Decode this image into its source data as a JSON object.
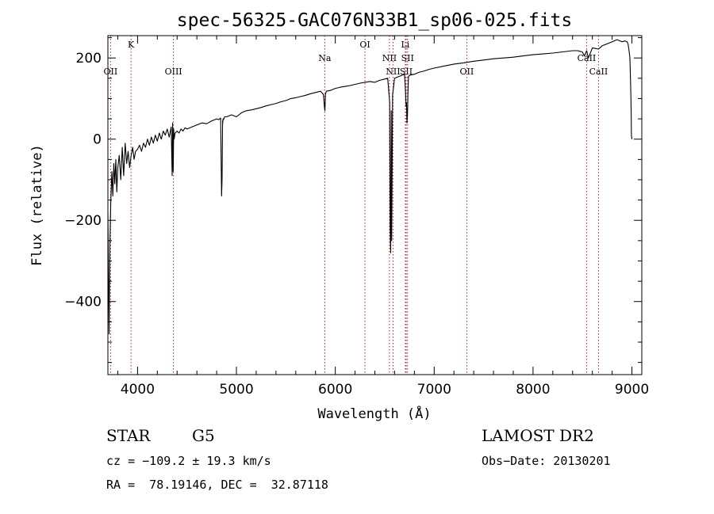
{
  "chart_data": {
    "type": "line",
    "title": "spec-56325-GAC076N33B1_sp06-025.fits",
    "xlabel": "Wavelength (Å)",
    "ylabel": "Flux (relative)",
    "xlim": [
      3700,
      9100
    ],
    "ylim": [
      -580,
      255
    ],
    "x_ticks": [
      4000,
      5000,
      6000,
      7000,
      8000,
      9000
    ],
    "y_ticks": [
      -400,
      -200,
      0,
      200
    ],
    "grid": false,
    "line_color": "#000000",
    "marker_color": "#b22222",
    "series": [
      {
        "x": [
          3700,
          3705,
          3712,
          3720,
          3730,
          3740,
          3750,
          3760,
          3770,
          3780,
          3790,
          3800,
          3815,
          3830,
          3845,
          3860,
          3875,
          3890,
          3905,
          3920,
          3935,
          3950,
          3965,
          3980,
          4000,
          4020,
          4040,
          4060,
          4080,
          4100,
          4120,
          4140,
          4160,
          4180,
          4200,
          4220,
          4240,
          4260,
          4280,
          4300,
          4320,
          4340,
          4350,
          4355,
          4360,
          4365,
          4370,
          4380,
          4400,
          4420,
          4440,
          4460,
          4480,
          4500,
          4550,
          4600,
          4650,
          4700,
          4750,
          4800,
          4820,
          4840,
          4850,
          4855,
          4860,
          4862,
          4865,
          4870,
          4880,
          4900,
          4950,
          5000,
          5050,
          5100,
          5150,
          5200,
          5250,
          5300,
          5350,
          5400,
          5450,
          5500,
          5550,
          5600,
          5650,
          5700,
          5750,
          5800,
          5850,
          5880,
          5890,
          5895,
          5900,
          5910,
          5950,
          6000,
          6050,
          6100,
          6150,
          6200,
          6250,
          6300,
          6350,
          6400,
          6450,
          6500,
          6530,
          6550,
          6555,
          6560,
          6563,
          6566,
          6570,
          6580,
          6600,
          6650,
          6680,
          6700,
          6710,
          6716,
          6720,
          6725,
          6730,
          6735,
          6740,
          6760,
          6800,
          6850,
          6900,
          6950,
          7000,
          7100,
          7200,
          7300,
          7400,
          7500,
          7600,
          7700,
          7800,
          7900,
          8000,
          8100,
          8200,
          8300,
          8400,
          8450,
          8498,
          8520,
          8542,
          8560,
          8600,
          8662,
          8700,
          8750,
          8800,
          8850,
          8900,
          8930,
          8950,
          8960,
          8970,
          8980,
          8985,
          8990,
          8993,
          8995,
          9000
        ],
        "y": [
          -180,
          -300,
          -480,
          -260,
          -150,
          -80,
          -140,
          -60,
          -110,
          -50,
          -130,
          -70,
          -40,
          -100,
          -20,
          -90,
          -10,
          -60,
          -30,
          -70,
          -40,
          -20,
          -50,
          -30,
          -25,
          -15,
          -30,
          -10,
          -20,
          0,
          -15,
          5,
          -10,
          10,
          -5,
          15,
          0,
          20,
          10,
          25,
          5,
          30,
          -90,
          40,
          -80,
          25,
          0,
          15,
          20,
          15,
          25,
          20,
          28,
          25,
          30,
          35,
          40,
          38,
          45,
          50,
          48,
          52,
          -140,
          -100,
          45,
          40,
          50,
          48,
          55,
          55,
          60,
          55,
          65,
          70,
          72,
          75,
          78,
          82,
          85,
          88,
          92,
          95,
          100,
          102,
          105,
          108,
          112,
          115,
          118,
          110,
          80,
          70,
          110,
          118,
          120,
          125,
          128,
          130,
          132,
          135,
          138,
          140,
          142,
          140,
          145,
          148,
          150,
          90,
          -220,
          -280,
          -100,
          70,
          -250,
          110,
          150,
          155,
          158,
          160,
          120,
          80,
          90,
          40,
          60,
          120,
          155,
          158,
          160,
          165,
          168,
          172,
          175,
          180,
          185,
          188,
          192,
          195,
          198,
          200,
          202,
          205,
          208,
          210,
          212,
          215,
          218,
          218,
          215,
          205,
          218,
          200,
          225,
          222,
          230,
          235,
          240,
          245,
          240,
          242,
          240,
          235,
          220,
          200,
          150,
          100,
          50,
          10,
          0
        ]
      }
    ],
    "line_markers": [
      {
        "label": "OII",
        "x": 3727
      },
      {
        "label": "K",
        "x": 3934
      },
      {
        "label": "OIII",
        "x": 4363
      },
      {
        "label": "Na",
        "x": 5893
      },
      {
        "label": "OI",
        "x": 6300
      },
      {
        "label": "NII",
        "x": 6548
      },
      {
        "label": "NII",
        "x": 6584
      },
      {
        "label": "Li",
        "x": 6708
      },
      {
        "label": "SII",
        "x": 6717
      },
      {
        "label": "SII",
        "x": 6731
      },
      {
        "label": "OII",
        "x": 7330
      },
      {
        "label": "CaII",
        "x": 8542
      },
      {
        "label": "CaII",
        "x": 8662
      }
    ]
  },
  "info": {
    "class": "STAR",
    "subclass": "G5",
    "survey": "LAMOST DR2",
    "cz": "cz = −109.2 ± 19.3 km/s",
    "obs_date": "Obs−Date: 20130201",
    "coords": "RA =  78.19146, DEC =  32.87118"
  }
}
